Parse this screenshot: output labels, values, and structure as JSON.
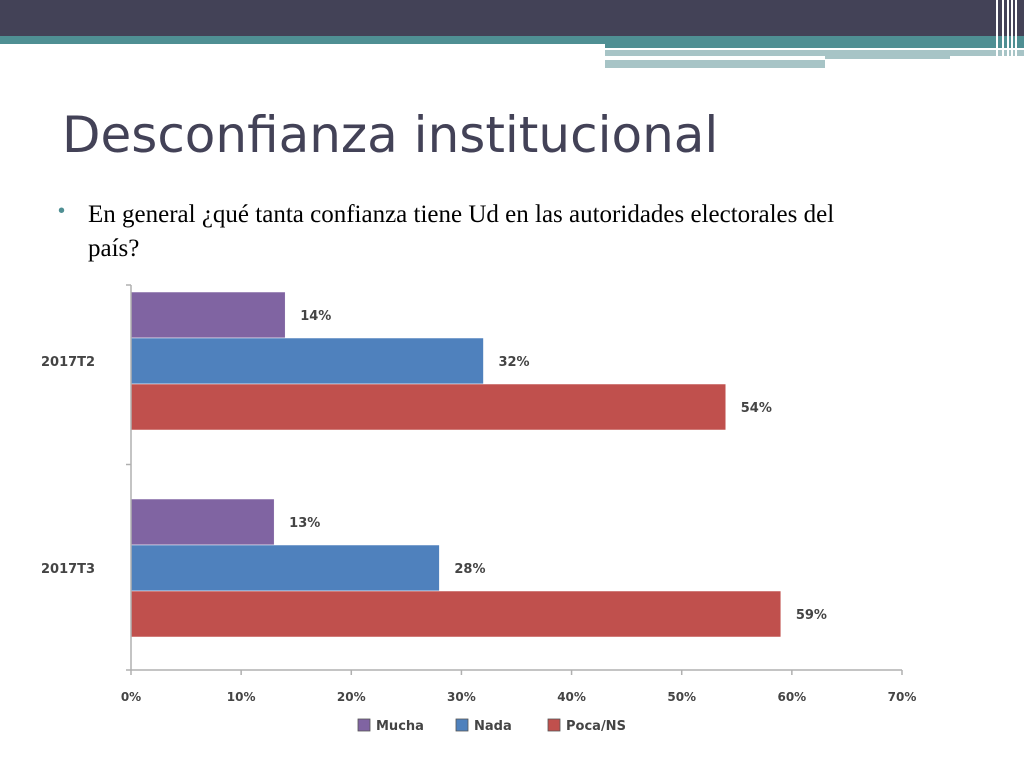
{
  "title": "Desconfianza institucional",
  "question": "En general ¿qué tanta confianza tiene Ud en las autoridades electorales del país?",
  "chart_data": {
    "type": "bar",
    "orientation": "horizontal",
    "categories": [
      "2017T2",
      "2017T3"
    ],
    "series": [
      {
        "name": "Mucha",
        "color": "#8064a2",
        "values": [
          14,
          13
        ],
        "labels": [
          "14%",
          "13%"
        ]
      },
      {
        "name": "Nada",
        "color": "#4f81bd",
        "values": [
          32,
          28
        ],
        "labels": [
          "32%",
          "28%"
        ]
      },
      {
        "name": "Poca/NS",
        "color": "#c0504d",
        "values": [
          54,
          59
        ],
        "labels": [
          "54%",
          "59%"
        ]
      }
    ],
    "xlim": [
      0,
      70
    ],
    "xticks": [
      "0%",
      "10%",
      "20%",
      "30%",
      "40%",
      "50%",
      "60%",
      "70%"
    ],
    "legend_position": "bottom",
    "grid": false
  }
}
